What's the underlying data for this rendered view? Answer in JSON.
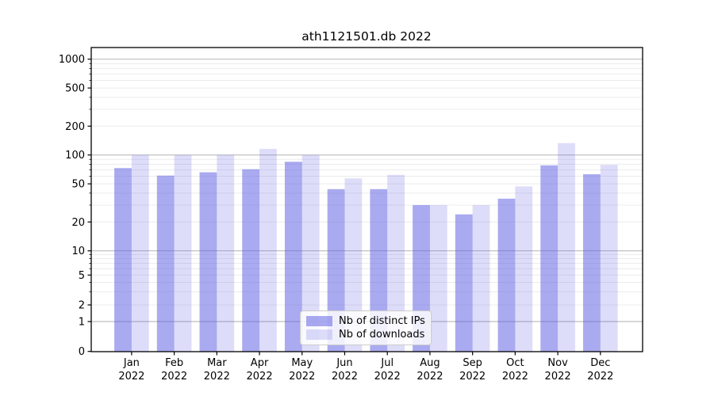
{
  "chart_data": {
    "type": "bar",
    "title": "ath1121501.db 2022",
    "categories": [
      "Jan",
      "Feb",
      "Mar",
      "Apr",
      "May",
      "Jun",
      "Jul",
      "Aug",
      "Sep",
      "Oct",
      "Nov",
      "Dec"
    ],
    "year": "2022",
    "series": [
      {
        "name": "Nb of distinct IPs",
        "color": "#5555E1",
        "alpha": 0.5,
        "values": [
          73,
          61,
          66,
          71,
          85,
          44,
          44,
          30,
          24,
          35,
          78,
          63
        ]
      },
      {
        "name": "Nb of downloads",
        "color": "#5555E1",
        "alpha": 0.2,
        "values": [
          100,
          100,
          100,
          116,
          100,
          57,
          62,
          30,
          30,
          47,
          133,
          79
        ]
      }
    ],
    "yscale": "symlog",
    "yticks": [
      0,
      1,
      2,
      5,
      10,
      20,
      50,
      100,
      200,
      500,
      1000
    ],
    "ylim": [
      0,
      1320
    ],
    "xlabel": "",
    "ylabel": "",
    "grid": {
      "major": true,
      "minor": true
    },
    "legend_position": "lower center",
    "colors": {
      "grid_major": "#bdbdbd",
      "grid_minor": "#ececec",
      "spine": "#000000",
      "tick_label": "#000000"
    }
  }
}
